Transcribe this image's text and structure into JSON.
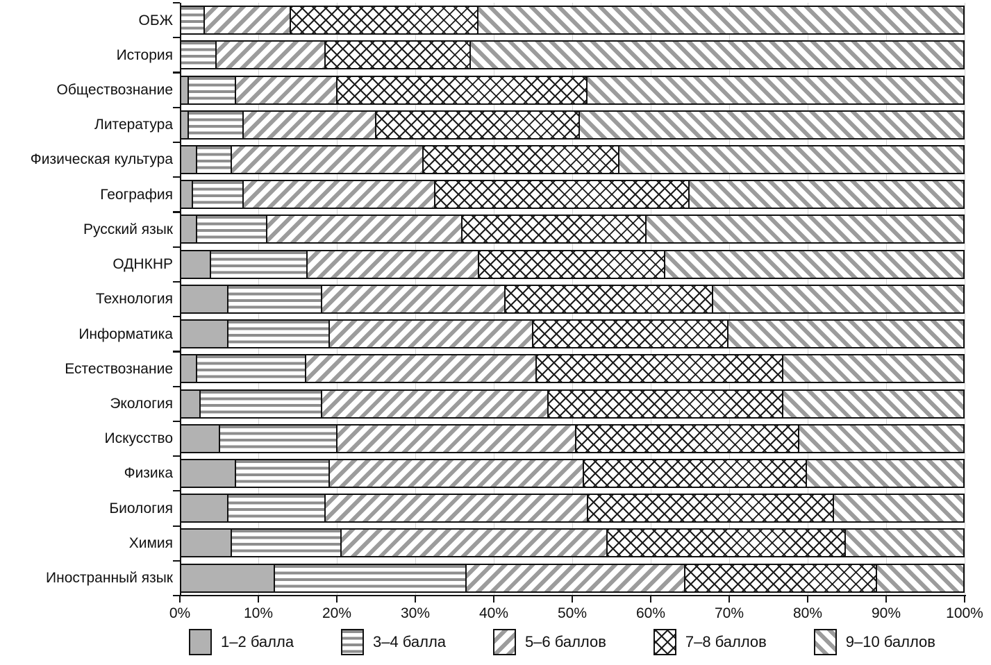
{
  "chart_data": {
    "type": "bar",
    "stacked": true,
    "orientation": "horizontal",
    "unit": "percent",
    "title": "",
    "xlabel": "",
    "ylabel": "",
    "xlim": [
      0,
      100
    ],
    "grid": true,
    "legend_position": "bottom",
    "x_ticks": [
      "0%",
      "10%",
      "20%",
      "30%",
      "40%",
      "50%",
      "60%",
      "70%",
      "80%",
      "90%",
      "100%"
    ],
    "categories": [
      "ОБЖ",
      "История",
      "Обществознание",
      "Литература",
      "Физическая культура",
      "География",
      "Русский язык",
      "ОДНКНР",
      "Технология",
      "Информатика",
      "Естествознание",
      "Экология",
      "Искусство",
      "Физика",
      "Биология",
      "Химия",
      "Иностранный язык"
    ],
    "series": [
      {
        "name": "1–2 балла",
        "pattern": "solid",
        "values": [
          0,
          0,
          1,
          1,
          2,
          1.5,
          2,
          4,
          6,
          6,
          2,
          2.5,
          5,
          7,
          6,
          6.5,
          12
        ]
      },
      {
        "name": "3–4 балла",
        "pattern": "horizontal-lines",
        "values": [
          3,
          4.5,
          6,
          7,
          4.5,
          6.5,
          9,
          13,
          12,
          13,
          14,
          15.5,
          15,
          12,
          12.5,
          14,
          24.5
        ]
      },
      {
        "name": "5–6 баллов",
        "pattern": "diagonal-forward",
        "values": [
          11,
          14,
          13,
          17,
          24.5,
          24.5,
          25,
          23,
          23.5,
          26,
          29.5,
          29,
          30.5,
          32.5,
          33.5,
          34,
          28
        ]
      },
      {
        "name": "7–8 баллов",
        "pattern": "crosshatch",
        "values": [
          24,
          18.5,
          32,
          26,
          25,
          32.5,
          23.5,
          25,
          26.5,
          25,
          31.5,
          30,
          28.5,
          28.5,
          31.5,
          30.5,
          24.5
        ]
      },
      {
        "name": "9–10 баллов",
        "pattern": "diagonal-back",
        "values": [
          62,
          63,
          48,
          49,
          44,
          35,
          40.5,
          40,
          32,
          30,
          23,
          23,
          21,
          20,
          16.5,
          15,
          11
        ]
      }
    ]
  },
  "colors": {
    "solid_fill": "#b2b2b2",
    "pattern_gray": "#9c9c9c",
    "hatch_black": "#1b1b1b",
    "axis_black": "#111111",
    "grid_gray": "#d4d4d4"
  }
}
